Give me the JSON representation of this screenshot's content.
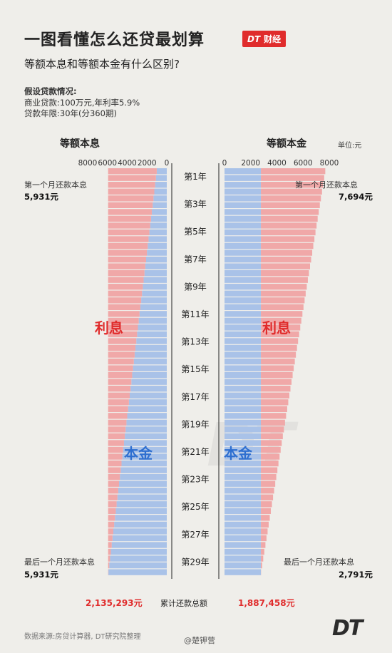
{
  "header": {
    "title": "一图看懂怎么还贷最划算",
    "badge_brand": "DT",
    "badge_text": "财经",
    "subtitle": "等额本息和等额本金有什么区别?"
  },
  "assumptions": {
    "heading": "假设贷款情况:",
    "line1": "商业贷款:100万元,年利率5.9%",
    "line2": "贷款年限:30年(分360期)"
  },
  "unit": "单位:元",
  "footer": {
    "source": "数据来源:房贷计算器, DT研究院整理",
    "watermark": "DT",
    "weibo": "@楚钾营"
  },
  "colors": {
    "interest": "#f0a8a8",
    "principal": "#a9c2e8",
    "interest_text": "#e02c2c",
    "principal_text": "#2e6fd0"
  },
  "chart_data": {
    "type": "bar",
    "orientation": "horizontal",
    "y_labels": [
      "第1年",
      "第3年",
      "第5年",
      "第7年",
      "第9年",
      "第11年",
      "第13年",
      "第15年",
      "第17年",
      "第19年",
      "第21年",
      "第23年",
      "第25年",
      "第27年",
      "第29年"
    ],
    "axis_ticks": [
      8000,
      6000,
      4000,
      2000,
      0
    ],
    "total_label": "累计还款总额",
    "panels": [
      {
        "title": "等额本息",
        "side": "left",
        "x_range": [
          0,
          8000
        ],
        "interest_label": "利息",
        "principal_label": "本金",
        "first_label": "第一个月还款本息",
        "first_value": "5,931元",
        "last_label": "最后一个月还款本息",
        "last_value": "5,931元",
        "total": "2,135,293元",
        "series": [
          {
            "name": "本金",
            "start": 1014,
            "end": 5903
          },
          {
            "name": "利息",
            "start": 4917,
            "end": 28
          }
        ],
        "payment_start": 5931,
        "payment_end": 5931
      },
      {
        "title": "等额本金",
        "side": "right",
        "x_range": [
          0,
          8000
        ],
        "interest_label": "利息",
        "principal_label": "本金",
        "first_label": "第一个月还款本息",
        "first_value": "7,694元",
        "last_label": "最后一个月还款本息",
        "last_value": "2,791元",
        "total": "1,887,458元",
        "series": [
          {
            "name": "本金",
            "start": 2778,
            "end": 2778
          },
          {
            "name": "利息",
            "start": 4916,
            "end": 13
          }
        ],
        "payment_start": 7694,
        "payment_end": 2791
      }
    ]
  }
}
